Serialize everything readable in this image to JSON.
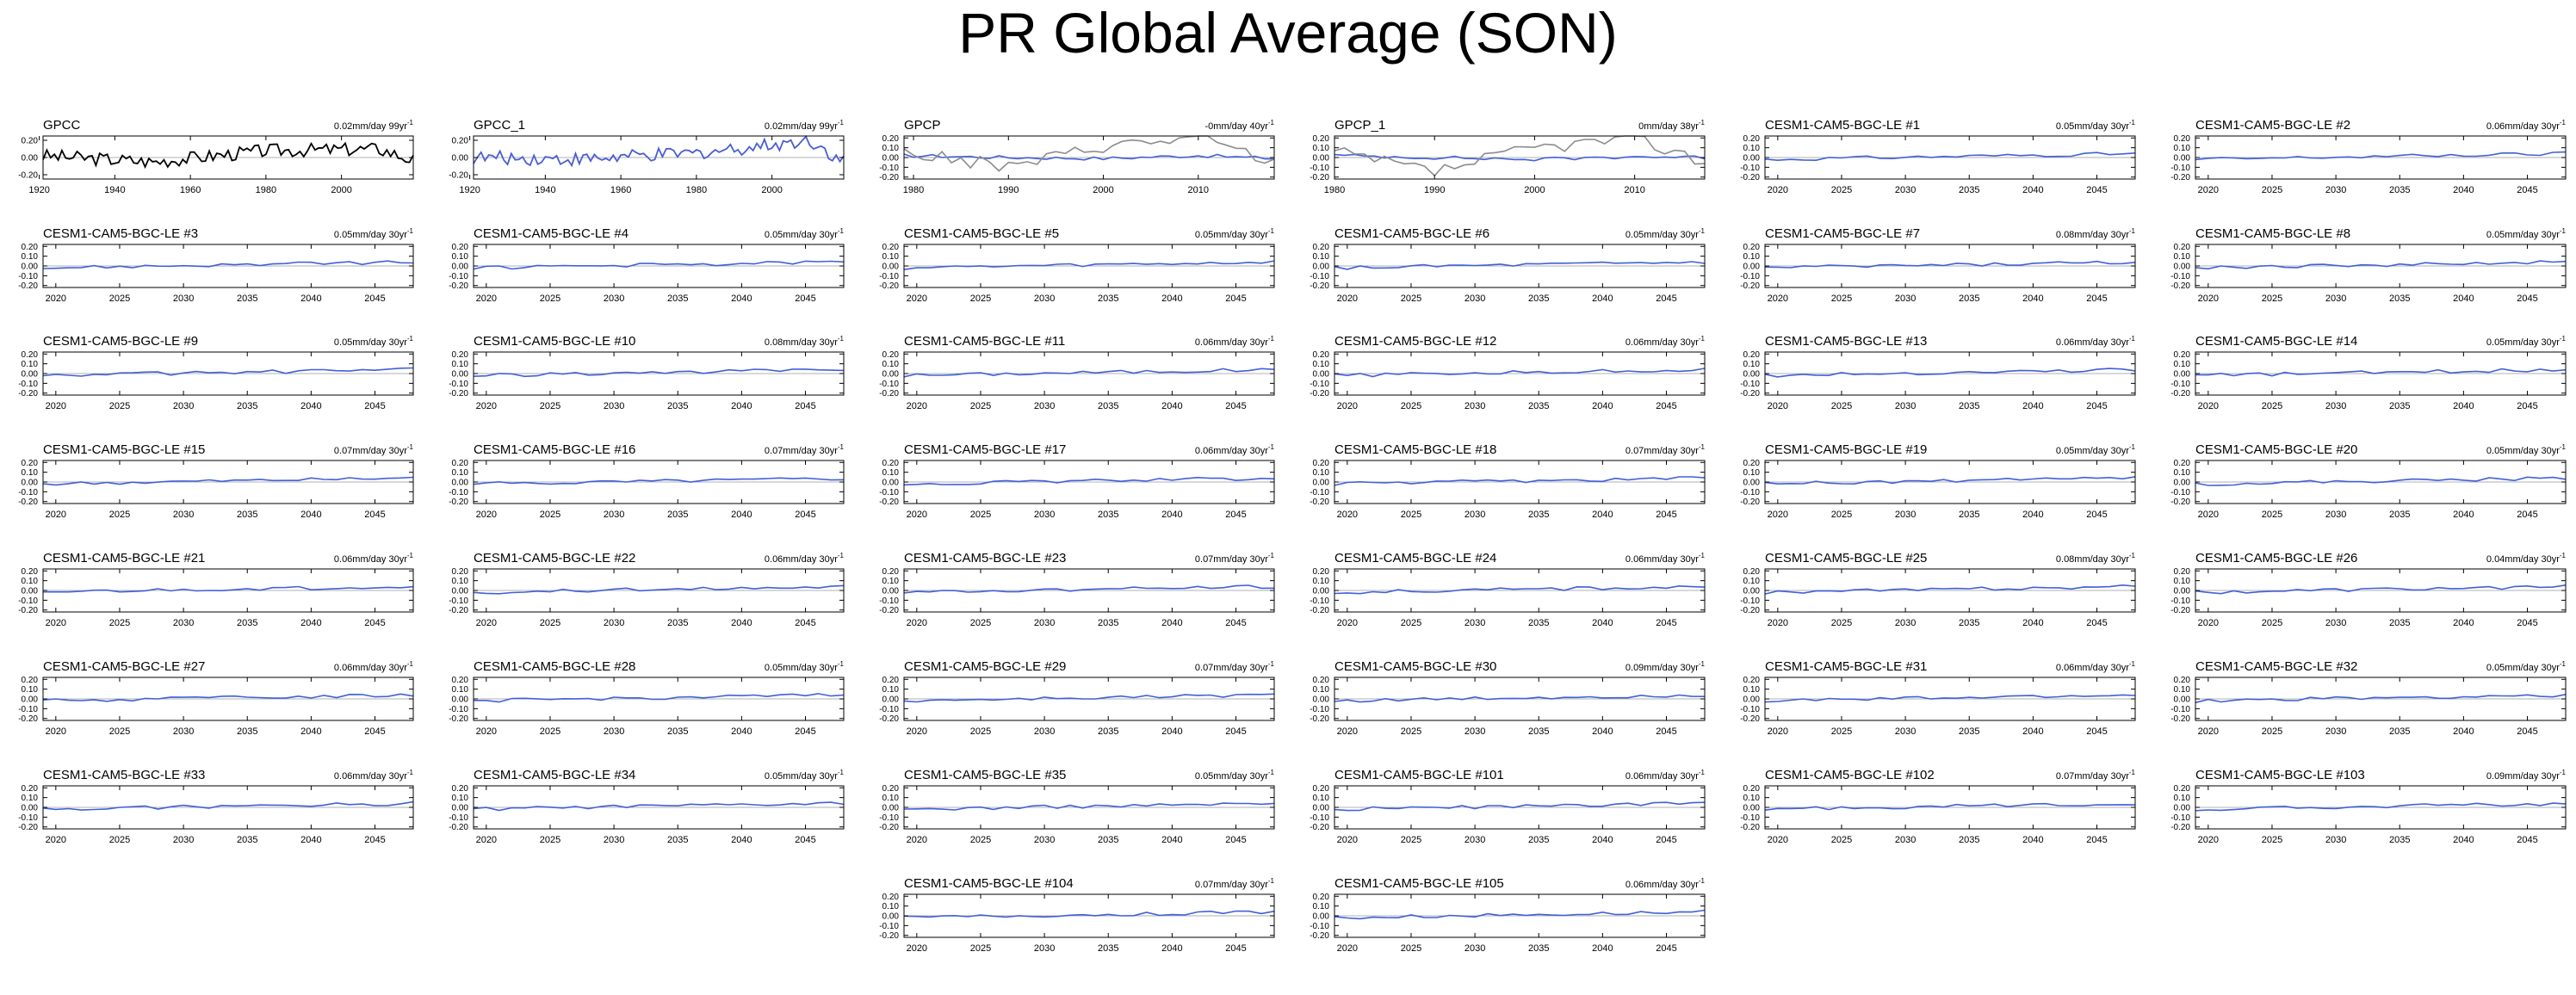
{
  "title": "PR Global Average (SON)",
  "colors": {
    "obs_line": "#000000",
    "model_line": "#4060d8",
    "gpcc1_line": "#4a5ed0",
    "secondary_line": "#8c8c8c",
    "zero_line": "#b0b0b0"
  },
  "chart_data": [
    {
      "type": "line",
      "title": "GPCC",
      "trend": "0.02mm/day 99yr",
      "trend_exp": "-1",
      "x": [
        1921,
        1950,
        1980,
        2010,
        2019
      ],
      "xticks": [
        1920,
        1940,
        1960,
        1980,
        2000
      ],
      "yticks": [
        "0.20",
        "0.00",
        "-0.20"
      ],
      "ylim": [
        -0.25,
        0.25
      ],
      "series": [
        {
          "values": [
            0.02,
            -0.05,
            0.08,
            0.1,
            -0.03
          ],
          "color": "#000000"
        }
      ]
    },
    {
      "type": "line",
      "title": "GPCC_1",
      "trend": "0.02mm/day 99yr",
      "trend_exp": "-1",
      "x": [
        1921,
        1950,
        1980,
        2010,
        2019
      ],
      "xticks": [
        1920,
        1940,
        1960,
        1980,
        2000
      ],
      "yticks": [
        "0.20",
        "0.00",
        "-0.20"
      ],
      "ylim": [
        -0.25,
        0.25
      ],
      "series": [
        {
          "values": [
            0.0,
            -0.02,
            0.05,
            0.2,
            -0.05
          ],
          "color": "#4a5ed0"
        }
      ]
    },
    {
      "type": "line",
      "title": "GPCP",
      "trend": "-0mm/day 40yr",
      "trend_exp": "-1",
      "x": [
        1979,
        1990,
        2000,
        2010,
        2018
      ],
      "xticks": [
        1980,
        1990,
        2000,
        2010
      ],
      "yticks": [
        "0.20",
        "0.10",
        "0.00",
        "-0.10",
        "-0.20"
      ],
      "ylim": [
        -0.22,
        0.22
      ],
      "series": [
        {
          "values": [
            0.02,
            0.0,
            -0.01,
            0.02,
            -0.01
          ],
          "color": "#4060d8"
        },
        {
          "values": [
            0.05,
            -0.1,
            0.12,
            0.2,
            -0.05
          ],
          "color": "#8c8c8c"
        }
      ]
    },
    {
      "type": "line",
      "title": "GPCP_1",
      "trend": "0mm/day 38yr",
      "trend_exp": "-1",
      "x": [
        1980,
        1990,
        2000,
        2010,
        2017
      ],
      "xticks": [
        1980,
        1990,
        2000,
        2010
      ],
      "yticks": [
        "0.20",
        "0.10",
        "0.00",
        "-0.10",
        "-0.20"
      ],
      "ylim": [
        -0.22,
        0.22
      ],
      "series": [
        {
          "values": [
            0.02,
            0.0,
            -0.02,
            0.01,
            0.0
          ],
          "color": "#4060d8"
        },
        {
          "values": [
            0.05,
            -0.15,
            0.1,
            0.2,
            -0.05
          ],
          "color": "#8c8c8c"
        }
      ]
    },
    {
      "type": "line",
      "title": "CESM1-CAM5-BGC-LE #1",
      "trend": "0.05mm/day 30yr",
      "trend_exp": "-1"
    },
    {
      "type": "line",
      "title": "CESM1-CAM5-BGC-LE #2",
      "trend": "0.06mm/day 30yr",
      "trend_exp": "-1"
    },
    {
      "type": "line",
      "title": "CESM1-CAM5-BGC-LE #3",
      "trend": "0.05mm/day 30yr",
      "trend_exp": "-1"
    },
    {
      "type": "line",
      "title": "CESM1-CAM5-BGC-LE #4",
      "trend": "0.05mm/day 30yr",
      "trend_exp": "-1"
    },
    {
      "type": "line",
      "title": "CESM1-CAM5-BGC-LE #5",
      "trend": "0.05mm/day 30yr",
      "trend_exp": "-1"
    },
    {
      "type": "line",
      "title": "CESM1-CAM5-BGC-LE #6",
      "trend": "0.05mm/day 30yr",
      "trend_exp": "-1"
    },
    {
      "type": "line",
      "title": "CESM1-CAM5-BGC-LE #7",
      "trend": "0.08mm/day 30yr",
      "trend_exp": "-1"
    },
    {
      "type": "line",
      "title": "CESM1-CAM5-BGC-LE #8",
      "trend": "0.05mm/day 30yr",
      "trend_exp": "-1"
    },
    {
      "type": "line",
      "title": "CESM1-CAM5-BGC-LE #9",
      "trend": "0.05mm/day 30yr",
      "trend_exp": "-1"
    },
    {
      "type": "line",
      "title": "CESM1-CAM5-BGC-LE #10",
      "trend": "0.08mm/day 30yr",
      "trend_exp": "-1"
    },
    {
      "type": "line",
      "title": "CESM1-CAM5-BGC-LE #11",
      "trend": "0.06mm/day 30yr",
      "trend_exp": "-1"
    },
    {
      "type": "line",
      "title": "CESM1-CAM5-BGC-LE #12",
      "trend": "0.06mm/day 30yr",
      "trend_exp": "-1"
    },
    {
      "type": "line",
      "title": "CESM1-CAM5-BGC-LE #13",
      "trend": "0.06mm/day 30yr",
      "trend_exp": "-1"
    },
    {
      "type": "line",
      "title": "CESM1-CAM5-BGC-LE #14",
      "trend": "0.05mm/day 30yr",
      "trend_exp": "-1"
    },
    {
      "type": "line",
      "title": "CESM1-CAM5-BGC-LE #15",
      "trend": "0.07mm/day 30yr",
      "trend_exp": "-1"
    },
    {
      "type": "line",
      "title": "CESM1-CAM5-BGC-LE #16",
      "trend": "0.07mm/day 30yr",
      "trend_exp": "-1"
    },
    {
      "type": "line",
      "title": "CESM1-CAM5-BGC-LE #17",
      "trend": "0.06mm/day 30yr",
      "trend_exp": "-1"
    },
    {
      "type": "line",
      "title": "CESM1-CAM5-BGC-LE #18",
      "trend": "0.07mm/day 30yr",
      "trend_exp": "-1"
    },
    {
      "type": "line",
      "title": "CESM1-CAM5-BGC-LE #19",
      "trend": "0.05mm/day 30yr",
      "trend_exp": "-1"
    },
    {
      "type": "line",
      "title": "CESM1-CAM5-BGC-LE #20",
      "trend": "0.05mm/day 30yr",
      "trend_exp": "-1"
    },
    {
      "type": "line",
      "title": "CESM1-CAM5-BGC-LE #21",
      "trend": "0.06mm/day 30yr",
      "trend_exp": "-1"
    },
    {
      "type": "line",
      "title": "CESM1-CAM5-BGC-LE #22",
      "trend": "0.06mm/day 30yr",
      "trend_exp": "-1"
    },
    {
      "type": "line",
      "title": "CESM1-CAM5-BGC-LE #23",
      "trend": "0.07mm/day 30yr",
      "trend_exp": "-1"
    },
    {
      "type": "line",
      "title": "CESM1-CAM5-BGC-LE #24",
      "trend": "0.06mm/day 30yr",
      "trend_exp": "-1"
    },
    {
      "type": "line",
      "title": "CESM1-CAM5-BGC-LE #25",
      "trend": "0.08mm/day 30yr",
      "trend_exp": "-1"
    },
    {
      "type": "line",
      "title": "CESM1-CAM5-BGC-LE #26",
      "trend": "0.04mm/day 30yr",
      "trend_exp": "-1"
    },
    {
      "type": "line",
      "title": "CESM1-CAM5-BGC-LE #27",
      "trend": "0.06mm/day 30yr",
      "trend_exp": "-1"
    },
    {
      "type": "line",
      "title": "CESM1-CAM5-BGC-LE #28",
      "trend": "0.05mm/day 30yr",
      "trend_exp": "-1"
    },
    {
      "type": "line",
      "title": "CESM1-CAM5-BGC-LE #29",
      "trend": "0.07mm/day 30yr",
      "trend_exp": "-1"
    },
    {
      "type": "line",
      "title": "CESM1-CAM5-BGC-LE #30",
      "trend": "0.09mm/day 30yr",
      "trend_exp": "-1"
    },
    {
      "type": "line",
      "title": "CESM1-CAM5-BGC-LE #31",
      "trend": "0.06mm/day 30yr",
      "trend_exp": "-1"
    },
    {
      "type": "line",
      "title": "CESM1-CAM5-BGC-LE #32",
      "trend": "0.05mm/day 30yr",
      "trend_exp": "-1"
    },
    {
      "type": "line",
      "title": "CESM1-CAM5-BGC-LE #33",
      "trend": "0.06mm/day 30yr",
      "trend_exp": "-1"
    },
    {
      "type": "line",
      "title": "CESM1-CAM5-BGC-LE #34",
      "trend": "0.05mm/day 30yr",
      "trend_exp": "-1"
    },
    {
      "type": "line",
      "title": "CESM1-CAM5-BGC-LE #35",
      "trend": "0.05mm/day 30yr",
      "trend_exp": "-1"
    },
    {
      "type": "line",
      "title": "CESM1-CAM5-BGC-LE #101",
      "trend": "0.06mm/day 30yr",
      "trend_exp": "-1"
    },
    {
      "type": "line",
      "title": "CESM1-CAM5-BGC-LE #102",
      "trend": "0.07mm/day 30yr",
      "trend_exp": "-1"
    },
    {
      "type": "line",
      "title": "CESM1-CAM5-BGC-LE #103",
      "trend": "0.09mm/day 30yr",
      "trend_exp": "-1"
    },
    {
      "type": "line",
      "title": "CESM1-CAM5-BGC-LE #104",
      "trend": "0.07mm/day 30yr",
      "trend_exp": "-1"
    },
    {
      "type": "line",
      "title": "CESM1-CAM5-BGC-LE #105",
      "trend": "0.06mm/day 30yr",
      "trend_exp": "-1"
    }
  ],
  "model_panel_defaults": {
    "x": [
      2019,
      2028,
      2038,
      2048
    ],
    "xticks": [
      2020,
      2025,
      2030,
      2035,
      2040,
      2045
    ],
    "yticks": [
      "0.20",
      "0.10",
      "0.00",
      "-0.10",
      "-0.20"
    ],
    "ylim": [
      -0.22,
      0.22
    ],
    "values": [
      -0.02,
      0.0,
      0.02,
      0.04
    ]
  }
}
